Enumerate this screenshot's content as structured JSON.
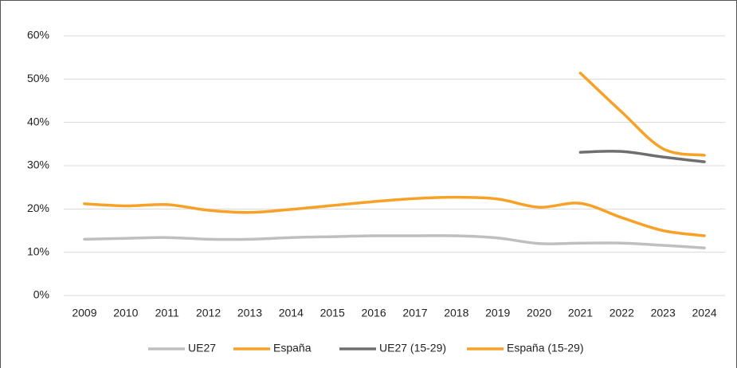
{
  "chart_data": {
    "type": "line",
    "categories": [
      "2009",
      "2010",
      "2011",
      "2012",
      "2013",
      "2014",
      "2015",
      "2016",
      "2017",
      "2018",
      "2019",
      "2020",
      "2021",
      "2022",
      "2023",
      "2024"
    ],
    "series": [
      {
        "name": "UE27",
        "color": "#bfbfbf",
        "values": [
          13.0,
          13.2,
          13.4,
          13.0,
          13.0,
          13.4,
          13.6,
          13.8,
          13.8,
          13.8,
          13.3,
          12.0,
          12.1,
          12.1,
          11.6,
          11.0
        ]
      },
      {
        "name": "España",
        "color": "#f7a128",
        "values": [
          21.2,
          20.7,
          21.0,
          19.7,
          19.2,
          19.9,
          20.8,
          21.7,
          22.4,
          22.7,
          22.3,
          20.4,
          21.3,
          18.0,
          15.0,
          13.8
        ]
      },
      {
        "name": "UE27 (15-29)",
        "color": "#6f6f6f",
        "values": [
          null,
          null,
          null,
          null,
          null,
          null,
          null,
          null,
          null,
          null,
          null,
          null,
          33.1,
          33.3,
          32.0,
          30.9
        ]
      },
      {
        "name": "España (15-29)",
        "color": "#f7a128",
        "values": [
          null,
          null,
          null,
          null,
          null,
          null,
          null,
          null,
          null,
          null,
          null,
          null,
          51.4,
          42.4,
          33.9,
          32.4
        ]
      }
    ],
    "ylim": [
      0,
      60
    ],
    "yticks": [
      {
        "value": 0,
        "label": "0%"
      },
      {
        "value": 10,
        "label": "10%"
      },
      {
        "value": 20,
        "label": "20%"
      },
      {
        "value": 30,
        "label": "30%"
      },
      {
        "value": 40,
        "label": "40%"
      },
      {
        "value": 50,
        "label": "50%"
      },
      {
        "value": 60,
        "label": "60%"
      }
    ],
    "grid": true
  }
}
